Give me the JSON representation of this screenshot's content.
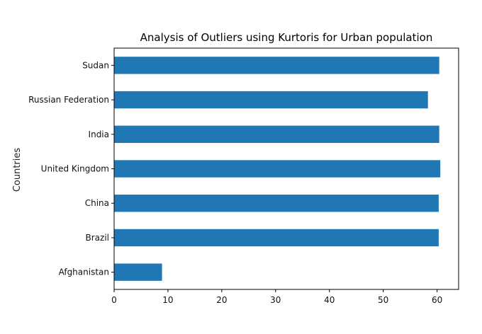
{
  "chart_data": {
    "type": "bar",
    "orientation": "horizontal",
    "title": "Analysis of Outliers using Kurtoris for Urban population",
    "xlabel": "",
    "ylabel": "Countries",
    "categories": [
      "Afghanistan",
      "Brazil",
      "China",
      "United Kingdom",
      "India",
      "Russian Federation",
      "Sudan"
    ],
    "values": [
      8.9,
      60.3,
      60.3,
      60.6,
      60.4,
      58.3,
      60.4
    ],
    "xlim": [
      0,
      64
    ],
    "xticks": [
      0,
      10,
      20,
      30,
      40,
      50,
      60
    ],
    "grid": false,
    "bar_color": "#1f77b4"
  }
}
